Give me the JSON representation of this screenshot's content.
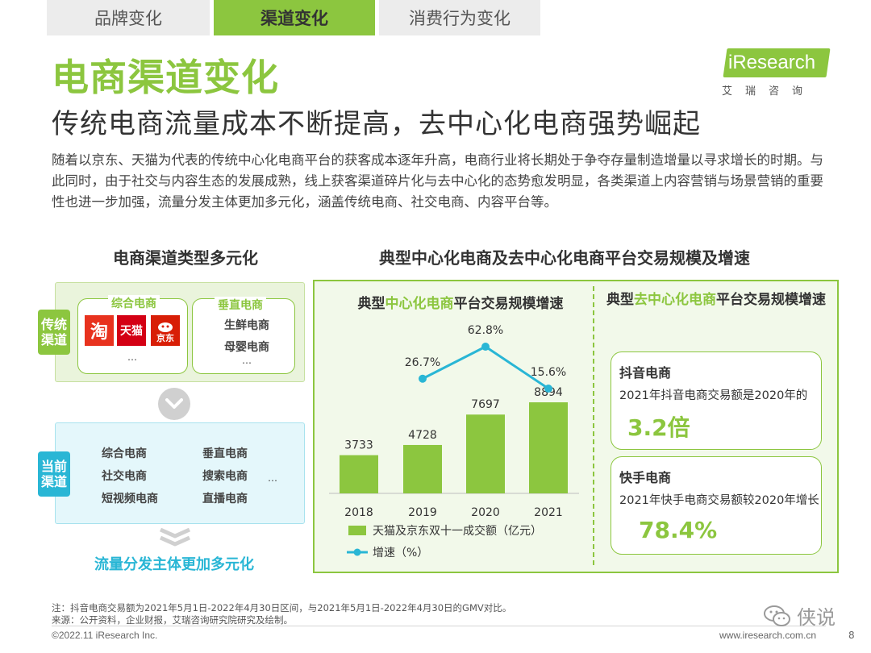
{
  "tabs": [
    {
      "label": "品牌变化",
      "active": false
    },
    {
      "label": "渠道变化",
      "active": true
    },
    {
      "label": "消费行为变化",
      "active": false
    }
  ],
  "logo": {
    "text": "iResearch",
    "cn": "艾瑞咨询"
  },
  "page_title": "电商渠道变化",
  "subtitle": "传统电商流量成本不断提高，去中心化电商强势崛起",
  "body_text": "随着以京东、天猫为代表的传统中心化电商平台的获客成本逐年升高，电商行业将长期处于争夺存量制造增量以寻求增长的时期。与此同时，由于社交与内容生态的发展成熟，线上获客渠道碎片化与去中心化的态势愈发明显，各类渠道上内容营销与场景营销的重要性也进一步加强，流量分发主体更加多元化，涵盖传统电商、社交电商、内容平台等。",
  "left_section": {
    "heading": "电商渠道类型多元化",
    "traditional": {
      "label": "传统渠道",
      "group1": {
        "title": "综合电商",
        "icons": [
          "淘",
          "天猫",
          "京东"
        ],
        "more": "…"
      },
      "group2": {
        "title": "垂直电商",
        "items": [
          "生鲜电商",
          "母婴电商"
        ],
        "more": "…"
      }
    },
    "current": {
      "label": "当前渠道",
      "items_left": [
        "综合电商",
        "社交电商",
        "短视频电商"
      ],
      "items_right": [
        "垂直电商",
        "搜索电商",
        "直播电商"
      ],
      "more": "…"
    },
    "conclusion": "流量分发主体更加多元化"
  },
  "right_section": {
    "heading": "典型中心化电商及去中心化电商平台交易规模及增速",
    "chart_title_pre": "典型",
    "chart_title_hl": "中心化电商",
    "chart_title_post": "平台交易规模增速",
    "right_title_pre": "典型",
    "right_title_hl": "去中心化电商",
    "right_title_post": "平台交易规模增速",
    "card1": {
      "name": "抖音电商",
      "text": "2021年抖音电商交易额是2020年的",
      "value": "3.2倍"
    },
    "card2": {
      "name": "快手电商",
      "text": "2021年快手电商交易额较2020年增长",
      "value": "78.4%"
    }
  },
  "chart_data": {
    "type": "bar",
    "categories": [
      "2018",
      "2019",
      "2020",
      "2021"
    ],
    "series": [
      {
        "name": "天猫及京东双十一成交额（亿元）",
        "type": "bar",
        "values": [
          3733,
          4728,
          7697,
          8894
        ],
        "color": "#8cc63f"
      },
      {
        "name": "增速（%）",
        "type": "line",
        "values": [
          null,
          26.7,
          62.8,
          15.6
        ],
        "labels": [
          "",
          "26.7%",
          "62.8%",
          "15.6%"
        ],
        "color": "#29b6d5"
      }
    ]
  },
  "footer": {
    "note1": "注：抖音电商交易额为2021年5月1日-2022年4月30日区间，与2021年5月1日-2022年4月30日的GMV对比。",
    "note2": "来源：公开资料，企业财报，艾瑞咨询研究院研究及绘制。",
    "copyright": "©2022.11 iResearch Inc.",
    "site": "www.iresearch.com.cn",
    "page": "8",
    "watermark": "侠说"
  },
  "colors": {
    "green": "#8cc63f",
    "blue": "#29b6d5"
  }
}
